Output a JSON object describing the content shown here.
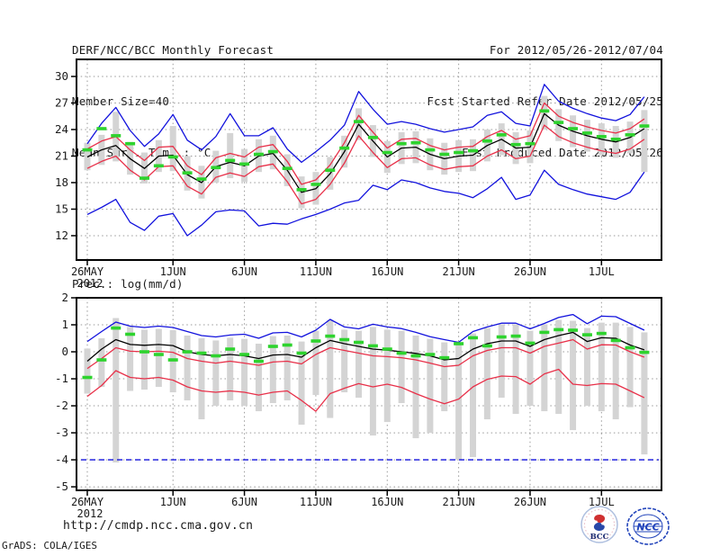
{
  "header": {
    "left": [
      "DERF/NCC/BCC Monthly Forecast",
      "Member Size=40",
      "Mean Surf. Temp.: °C"
    ],
    "right": [
      "For 2012/05/26-2012/07/04",
      "Fcst Started Refer Date 2012/05/25",
      "Fcst Produced Date 2012/05/26"
    ]
  },
  "footer": {
    "url": "http://cmdp.ncc.cma.gov.cn",
    "credit": "GrADS: COLA/IGES"
  },
  "logos": {
    "bcc_label": "BCC",
    "ncc_label": "NCC"
  },
  "colors": {
    "blue": "#1212dd",
    "red": "#e83049",
    "green": "#2ed32e",
    "black": "#000000",
    "bar_gray": "#d4d4d4",
    "grid_gray": "#999999",
    "frame": "#000000",
    "text": "#1a1a1a"
  },
  "chart_data": [
    {
      "id": "temperature",
      "type": "line",
      "title": "Mean Surf. Temp.: °C",
      "x_period": "2012/05/26 - 2012/07/04",
      "n_days": 40,
      "ylim": [
        9.25,
        31.93
      ],
      "yticks": [
        30,
        27,
        24,
        21,
        18,
        15,
        12
      ],
      "grid": true,
      "xticks": [
        {
          "pos": 0,
          "label": "26MAY",
          "sublabel": "2012"
        },
        {
          "pos": 6,
          "label": "1JUN"
        },
        {
          "pos": 11,
          "label": "6JUN"
        },
        {
          "pos": 16,
          "label": "11JUN"
        },
        {
          "pos": 21,
          "label": "16JUN"
        },
        {
          "pos": 26,
          "label": "21JUN"
        },
        {
          "pos": 31,
          "label": "26JUN"
        },
        {
          "pos": 36,
          "label": "1JUL"
        }
      ],
      "bars": {
        "name": "ensemble-spread-bar",
        "color": "bar_gray",
        "high": [
          22.5,
          23.4,
          26.0,
          22.6,
          21.4,
          22.8,
          24.4,
          21.0,
          19.9,
          21.6,
          23.6,
          21.8,
          22.9,
          23.3,
          21.2,
          18.7,
          19.2,
          20.9,
          23.3,
          26.4,
          24.5,
          22.7,
          23.7,
          23.8,
          23.0,
          22.5,
          22.8,
          22.9,
          24.0,
          24.7,
          23.7,
          23.9,
          27.8,
          26.3,
          25.6,
          25.1,
          24.7,
          24.4,
          24.9,
          26.2
        ],
        "low": [
          19.4,
          20.0,
          20.4,
          18.9,
          17.9,
          19.2,
          19.3,
          17.1,
          16.2,
          18.0,
          18.5,
          18.1,
          19.2,
          19.5,
          17.6,
          15.1,
          15.5,
          17.2,
          19.7,
          22.8,
          20.9,
          19.1,
          20.1,
          20.2,
          19.4,
          18.9,
          19.2,
          19.3,
          20.4,
          21.1,
          20.1,
          20.2,
          24.0,
          22.7,
          22.0,
          21.5,
          21.1,
          20.8,
          21.3,
          19.2
        ]
      },
      "series": [
        {
          "name": "ensemble-max",
          "color": "blue",
          "style": "line",
          "values": [
            22.4,
            24.7,
            26.5,
            23.9,
            22.1,
            23.5,
            25.7,
            22.8,
            21.7,
            23.2,
            25.8,
            23.3,
            23.3,
            24.2,
            21.8,
            20.3,
            21.5,
            22.8,
            24.5,
            28.3,
            26.3,
            24.6,
            24.9,
            24.6,
            24.1,
            23.7,
            24.0,
            24.3,
            25.6,
            26.0,
            24.7,
            24.4,
            29.1,
            27.2,
            26.4,
            25.8,
            25.3,
            25.0,
            25.7,
            27.7
          ]
        },
        {
          "name": "upper-quartile",
          "color": "red",
          "style": "line",
          "values": [
            21.8,
            22.7,
            23.2,
            21.7,
            20.5,
            22.0,
            22.1,
            19.9,
            18.9,
            20.8,
            21.3,
            20.9,
            22.0,
            22.3,
            20.4,
            17.8,
            18.3,
            20.0,
            22.5,
            25.6,
            23.7,
            21.9,
            22.9,
            23.0,
            22.2,
            21.7,
            22.0,
            22.1,
            23.2,
            23.9,
            22.9,
            23.3,
            27.0,
            25.5,
            24.8,
            24.3,
            23.9,
            23.6,
            24.1,
            25.2
          ]
        },
        {
          "name": "lower-quartile",
          "color": "red",
          "style": "line",
          "values": [
            19.6,
            20.4,
            21.0,
            19.4,
            18.3,
            19.8,
            19.9,
            17.6,
            16.7,
            18.6,
            19.1,
            18.7,
            19.8,
            20.1,
            18.1,
            15.6,
            16.1,
            17.8,
            20.2,
            23.3,
            21.4,
            19.7,
            20.7,
            20.8,
            20.0,
            19.5,
            19.8,
            19.9,
            21.0,
            21.7,
            20.7,
            21.0,
            24.5,
            23.2,
            22.5,
            22.0,
            21.6,
            21.3,
            21.8,
            22.9
          ]
        },
        {
          "name": "ensemble-min",
          "color": "blue",
          "style": "line",
          "values": [
            14.4,
            15.2,
            16.1,
            13.5,
            12.6,
            14.2,
            14.5,
            12.0,
            13.2,
            14.7,
            14.9,
            14.8,
            13.1,
            13.4,
            13.3,
            13.9,
            14.4,
            15.0,
            15.7,
            16.0,
            17.7,
            17.2,
            18.3,
            18.0,
            17.4,
            17.0,
            16.8,
            16.3,
            17.3,
            18.6,
            16.1,
            16.6,
            19.4,
            17.8,
            17.2,
            16.7,
            16.4,
            16.1,
            16.9,
            19.2
          ]
        },
        {
          "name": "ensemble-mean",
          "color": "black",
          "style": "line",
          "values": [
            20.9,
            21.7,
            22.2,
            20.7,
            19.6,
            21.0,
            21.1,
            18.9,
            18.0,
            19.8,
            20.3,
            19.9,
            21.0,
            21.3,
            19.4,
            16.9,
            17.3,
            19.0,
            21.5,
            24.6,
            22.7,
            20.9,
            21.9,
            22.0,
            21.2,
            20.7,
            21.0,
            21.1,
            22.2,
            22.9,
            21.9,
            22.0,
            25.8,
            24.5,
            23.8,
            23.3,
            22.9,
            22.6,
            23.1,
            24.1
          ]
        },
        {
          "name": "observation-dashes",
          "color": "green",
          "style": "dashes",
          "values": [
            21.7,
            24.1,
            23.3,
            22.4,
            18.5,
            19.9,
            20.9,
            19.1,
            18.4,
            19.7,
            20.5,
            20.1,
            21.2,
            21.5,
            19.6,
            17.2,
            17.8,
            19.4,
            21.9,
            24.9,
            23.1,
            21.4,
            22.4,
            22.5,
            21.7,
            21.2,
            21.4,
            21.6,
            22.7,
            23.4,
            22.3,
            22.4,
            26.1,
            24.8,
            24.1,
            23.6,
            23.2,
            22.9,
            23.4,
            24.4
          ]
        }
      ]
    },
    {
      "id": "precipitation",
      "type": "line",
      "title": "Prec.: log(mm/d)",
      "x_period": "2012/05/26 - 2012/07/04",
      "n_days": 40,
      "ylim": [
        -5.13,
        2.0
      ],
      "yticks": [
        2,
        1,
        0,
        -1,
        -2,
        -3,
        -4,
        -5
      ],
      "grid": true,
      "xticks": [
        {
          "pos": 0,
          "label": "26MAY",
          "sublabel": "2012"
        },
        {
          "pos": 6,
          "label": "1JUN"
        },
        {
          "pos": 11,
          "label": "6JUN"
        },
        {
          "pos": 16,
          "label": "11JUN"
        },
        {
          "pos": 21,
          "label": "16JUN"
        },
        {
          "pos": 26,
          "label": "21JUN"
        },
        {
          "pos": 31,
          "label": "26JUN"
        },
        {
          "pos": 36,
          "label": "1JUL"
        }
      ],
      "bars": {
        "name": "ensemble-spread-bar",
        "color": "bar_gray",
        "high": [
          0.12,
          0.5,
          1.25,
          0.92,
          0.82,
          0.85,
          0.8,
          0.6,
          0.5,
          0.42,
          0.52,
          0.48,
          0.3,
          0.58,
          0.6,
          0.38,
          0.78,
          1.18,
          0.82,
          0.78,
          0.92,
          0.82,
          0.78,
          0.6,
          0.48,
          0.35,
          0.3,
          0.68,
          0.88,
          1.02,
          1.02,
          0.78,
          1.02,
          1.18,
          1.15,
          0.88,
          1.08,
          1.08,
          0.92,
          0.72
        ],
        "low": [
          -1.55,
          -1.3,
          -4.1,
          -1.45,
          -1.4,
          -1.3,
          -1.5,
          -1.8,
          -2.5,
          -2.0,
          -1.8,
          -2.0,
          -2.2,
          -1.9,
          -1.8,
          -2.7,
          -1.6,
          -2.45,
          -1.5,
          -1.7,
          -3.1,
          -2.6,
          -1.9,
          -3.2,
          -3.0,
          -2.2,
          -4.0,
          -3.9,
          -2.5,
          -1.7,
          -2.3,
          -2.0,
          -2.2,
          -2.3,
          -2.9,
          -2.0,
          -2.2,
          -2.5,
          -2.05,
          -3.8
        ]
      },
      "series": [
        {
          "name": "ensemble-max",
          "color": "blue",
          "style": "line",
          "values": [
            0.38,
            0.75,
            1.1,
            0.95,
            0.9,
            0.95,
            0.9,
            0.75,
            0.6,
            0.55,
            0.62,
            0.65,
            0.5,
            0.7,
            0.72,
            0.55,
            0.8,
            1.2,
            0.92,
            0.85,
            1.02,
            0.92,
            0.86,
            0.72,
            0.56,
            0.45,
            0.35,
            0.75,
            0.92,
            1.06,
            1.06,
            0.85,
            1.05,
            1.27,
            1.38,
            1.04,
            1.32,
            1.3,
            1.05,
            0.8
          ]
        },
        {
          "name": "upper-quartile",
          "color": "red",
          "style": "line",
          "values": [
            -0.62,
            -0.25,
            0.15,
            0.02,
            0.0,
            0.02,
            -0.02,
            -0.25,
            -0.35,
            -0.42,
            -0.35,
            -0.42,
            -0.5,
            -0.38,
            -0.35,
            -0.45,
            -0.1,
            0.15,
            0.05,
            -0.05,
            -0.15,
            -0.18,
            -0.22,
            -0.3,
            -0.42,
            -0.55,
            -0.5,
            -0.15,
            0.05,
            0.15,
            0.15,
            -0.05,
            0.2,
            0.32,
            0.45,
            0.1,
            0.26,
            0.25,
            0.0,
            -0.2
          ]
        },
        {
          "name": "lower-quartile",
          "color": "red",
          "style": "line",
          "values": [
            -1.65,
            -1.25,
            -0.7,
            -0.95,
            -1.0,
            -0.95,
            -1.05,
            -1.3,
            -1.45,
            -1.5,
            -1.45,
            -1.5,
            -1.6,
            -1.5,
            -1.45,
            -1.8,
            -2.2,
            -1.55,
            -1.35,
            -1.18,
            -1.3,
            -1.2,
            -1.32,
            -1.55,
            -1.75,
            -1.92,
            -1.75,
            -1.3,
            -1.02,
            -0.9,
            -0.92,
            -1.2,
            -0.82,
            -0.65,
            -1.2,
            -1.25,
            -1.18,
            -1.2,
            -1.45,
            -1.7
          ]
        },
        {
          "name": "ensemble-min-capped",
          "color": "blue",
          "style": "flat-dashed",
          "flat_value": -4.0
        },
        {
          "name": "ensemble-mean",
          "color": "black",
          "style": "line",
          "values": [
            -0.35,
            0.1,
            0.45,
            0.27,
            0.24,
            0.27,
            0.23,
            0.0,
            -0.1,
            -0.15,
            -0.1,
            -0.15,
            -0.25,
            -0.12,
            -0.1,
            -0.2,
            0.15,
            0.42,
            0.3,
            0.2,
            0.1,
            0.06,
            0.0,
            -0.06,
            -0.15,
            -0.3,
            -0.25,
            0.1,
            0.3,
            0.4,
            0.4,
            0.2,
            0.45,
            0.6,
            0.72,
            0.38,
            0.52,
            0.5,
            0.25,
            0.07
          ]
        },
        {
          "name": "observation-dashes",
          "color": "green",
          "style": "dashes",
          "values": [
            -0.95,
            -0.3,
            0.88,
            0.65,
            0.0,
            -0.1,
            -0.3,
            0.0,
            -0.05,
            -0.15,
            0.1,
            -0.1,
            -0.35,
            0.2,
            0.25,
            -0.05,
            0.4,
            0.58,
            0.45,
            0.35,
            0.22,
            0.1,
            -0.05,
            -0.15,
            -0.1,
            -0.22,
            0.3,
            0.52,
            0.22,
            0.55,
            0.58,
            0.32,
            0.72,
            0.82,
            0.8,
            0.63,
            0.68,
            0.42,
            0.15,
            -0.02
          ]
        }
      ]
    }
  ]
}
